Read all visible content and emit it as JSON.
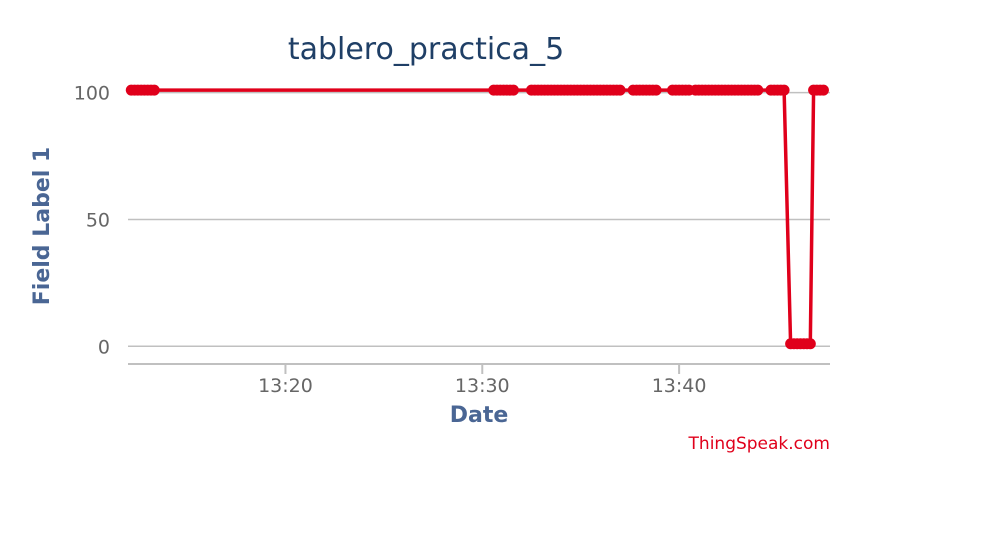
{
  "chart_data": {
    "type": "line",
    "title": "tablero_practica_5",
    "xlabel": "Date",
    "ylabel": "Field Label 1",
    "ylim": [
      -7,
      105
    ],
    "xlim": [
      "13:12:00",
      "13:47:40"
    ],
    "x_ticks": [
      "13:20",
      "13:30",
      "13:40"
    ],
    "y_ticks": [
      0,
      50,
      100
    ],
    "grid": true,
    "legend": "none",
    "series_color": "#e0001b",
    "series": [
      {
        "x": [
          "13:12:10",
          "13:12:20",
          "13:12:30",
          "13:12:40",
          "13:12:50",
          "13:13:00",
          "13:13:10",
          "13:13:20",
          "13:30:35",
          "13:30:45",
          "13:30:55",
          "13:31:05",
          "13:31:15",
          "13:31:25",
          "13:31:35",
          "13:32:30",
          "13:32:40",
          "13:32:50",
          "13:33:00",
          "13:33:10",
          "13:33:20",
          "13:33:30",
          "13:33:40",
          "13:33:50",
          "13:34:00",
          "13:34:10",
          "13:34:20",
          "13:34:30",
          "13:34:40",
          "13:34:50",
          "13:35:00",
          "13:35:10",
          "13:35:20",
          "13:35:30",
          "13:35:40",
          "13:35:50",
          "13:36:00",
          "13:36:10",
          "13:36:20",
          "13:36:30",
          "13:36:40",
          "13:36:50",
          "13:37:00",
          "13:37:40",
          "13:37:50",
          "13:38:00",
          "13:38:10",
          "13:38:20",
          "13:38:30",
          "13:38:40",
          "13:38:50",
          "13:39:40",
          "13:39:50",
          "13:40:00",
          "13:40:10",
          "13:40:20",
          "13:40:30",
          "13:40:50",
          "13:41:00",
          "13:41:10",
          "13:41:20",
          "13:41:30",
          "13:41:40",
          "13:41:50",
          "13:42:00",
          "13:42:10",
          "13:42:20",
          "13:42:30",
          "13:42:40",
          "13:42:50",
          "13:43:00",
          "13:43:10",
          "13:43:20",
          "13:43:30",
          "13:43:40",
          "13:43:50",
          "13:44:00",
          "13:44:40",
          "13:44:50",
          "13:45:00",
          "13:45:10",
          "13:45:20",
          "13:45:40",
          "13:45:50",
          "13:46:00",
          "13:46:10",
          "13:46:20",
          "13:46:30",
          "13:46:40",
          "13:46:50",
          "13:47:00",
          "13:47:10",
          "13:47:20"
        ],
        "y": [
          101,
          101,
          101,
          101,
          101,
          101,
          101,
          101,
          101,
          101,
          101,
          101,
          101,
          101,
          101,
          101,
          101,
          101,
          101,
          101,
          101,
          101,
          101,
          101,
          101,
          101,
          101,
          101,
          101,
          101,
          101,
          101,
          101,
          101,
          101,
          101,
          101,
          101,
          101,
          101,
          101,
          101,
          101,
          101,
          101,
          101,
          101,
          101,
          101,
          101,
          101,
          101,
          101,
          101,
          101,
          101,
          101,
          101,
          101,
          101,
          101,
          101,
          101,
          101,
          101,
          101,
          101,
          101,
          101,
          101,
          101,
          101,
          101,
          101,
          101,
          101,
          101,
          101,
          101,
          101,
          101,
          101,
          1,
          1,
          1,
          1,
          1,
          1,
          1,
          101,
          101,
          101,
          101
        ]
      }
    ]
  },
  "credit": "ThingSpeak.com"
}
